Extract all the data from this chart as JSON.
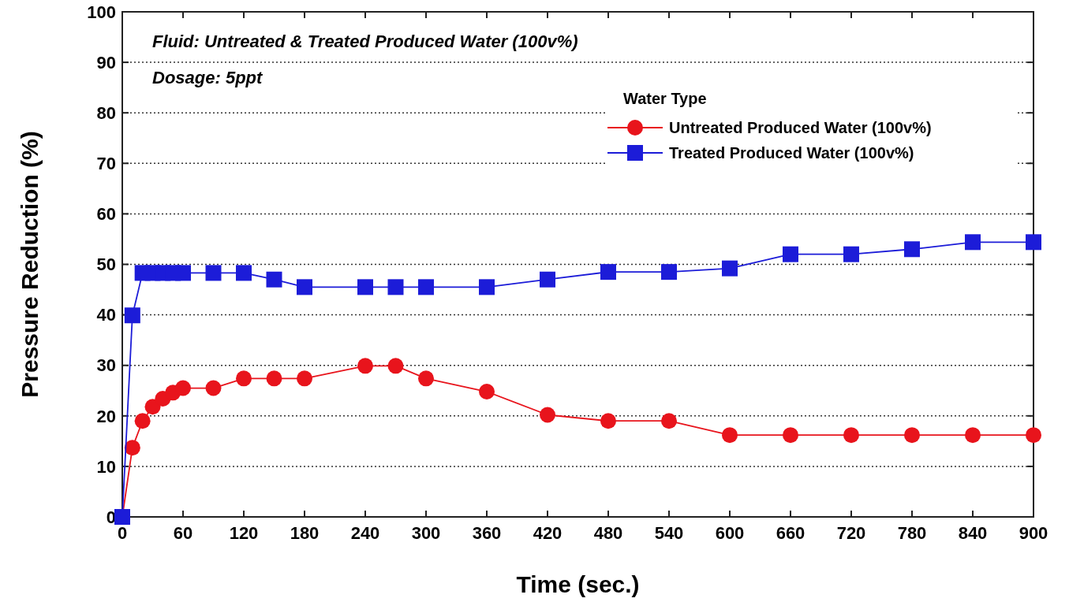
{
  "chart_data": {
    "type": "line",
    "xlabel": "Time (sec.)",
    "ylabel": "Pressure Reduction (%)",
    "legend_title": "Water Type",
    "legend": "top right",
    "grid": "y",
    "line_style": "solid",
    "x": [
      0,
      10,
      20,
      30,
      40,
      50,
      60,
      90,
      120,
      150,
      180,
      240,
      270,
      300,
      360,
      420,
      480,
      540,
      600,
      660,
      720,
      780,
      840,
      900
    ],
    "xlim": [
      0,
      900
    ],
    "xticks": [
      0,
      60,
      120,
      180,
      240,
      300,
      360,
      420,
      480,
      540,
      600,
      660,
      720,
      780,
      840,
      900
    ],
    "ylim": [
      0,
      100
    ],
    "yticks": [
      0,
      10,
      20,
      30,
      40,
      50,
      60,
      70,
      80,
      90,
      100
    ],
    "annotations": [
      "Fluid: Untreated & Treated Produced Water (100v%)",
      "Dosage: 5ppt"
    ],
    "series": [
      {
        "name": "Untreated Produced Water (100v%)",
        "color": "#e8141c",
        "marker": "circle",
        "values": [
          0,
          13.7,
          19,
          21.8,
          23.4,
          24.6,
          25.5,
          25.5,
          27.4,
          27.4,
          27.4,
          29.9,
          29.9,
          27.4,
          24.8,
          20.2,
          19,
          19,
          16.2,
          16.2,
          16.2,
          16.2,
          16.2,
          16.2
        ]
      },
      {
        "name": "Treated Produced Water (100v%)",
        "color": "#1c1cd8",
        "marker": "square",
        "values": [
          0,
          39.9,
          48.3,
          48.3,
          48.3,
          48.3,
          48.3,
          48.3,
          48.3,
          47,
          45.5,
          45.5,
          45.5,
          45.5,
          45.5,
          47,
          48.5,
          48.5,
          49.2,
          52,
          52,
          53,
          54.4,
          54.4
        ]
      }
    ]
  }
}
